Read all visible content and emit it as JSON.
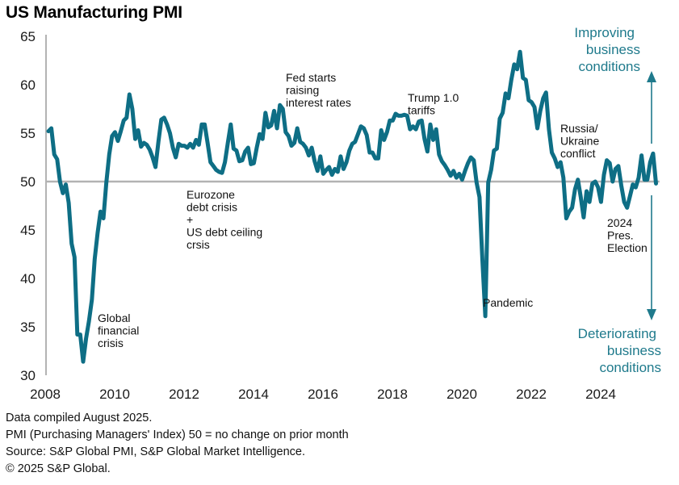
{
  "chart_data": {
    "type": "line",
    "title": "US Manufacturing PMI",
    "xlabel": "",
    "ylabel": "",
    "ylim": [
      30,
      65
    ],
    "yticks": [
      30,
      35,
      40,
      45,
      50,
      55,
      60,
      65
    ],
    "xlim": [
      2008,
      2025.6
    ],
    "xticks": [
      "2008",
      "2010",
      "2012",
      "2014",
      "2016",
      "2018",
      "2020",
      "2022",
      "2024"
    ],
    "reference_line": 50,
    "grid": false,
    "legend": "none",
    "line_color": "#0e6e85",
    "start": "2008-01",
    "frequency": "monthly",
    "series": [
      {
        "name": "US Manufacturing PMI",
        "values": [
          55.2,
          55.5,
          52.8,
          52.3,
          50.0,
          48.8,
          49.7,
          47.8,
          43.6,
          42.2,
          34.2,
          34.2,
          31.4,
          33.8,
          35.6,
          37.8,
          42.0,
          44.7,
          46.9,
          46.2,
          49.9,
          52.8,
          54.7,
          55.1,
          54.2,
          55.2,
          56.3,
          56.6,
          59.0,
          57.5,
          54.4,
          55.3,
          53.6,
          54.0,
          53.8,
          53.3,
          52.5,
          51.5,
          54.1,
          56.4,
          56.6,
          55.9,
          55.0,
          53.5,
          52.5,
          53.9,
          53.7,
          53.7,
          53.5,
          53.9,
          53.5,
          54.3,
          53.8,
          55.9,
          55.9,
          54.0,
          52.0,
          51.6,
          51.2,
          51.0,
          50.9,
          52.0,
          54.0,
          55.9,
          53.4,
          53.2,
          52.1,
          52.2,
          53.1,
          53.5,
          51.8,
          51.9,
          53.5,
          54.9,
          54.4,
          57.1,
          55.6,
          55.8,
          57.3,
          55.5,
          57.9,
          57.5,
          55.1,
          54.7,
          53.7,
          54.0,
          55.5,
          54.1,
          53.9,
          53.5,
          52.7,
          53.5,
          52.1,
          51.1,
          52.6,
          50.8,
          51.2,
          51.5,
          50.7,
          51.3,
          51.0,
          52.6,
          51.3,
          52.0,
          53.2,
          53.9,
          54.1,
          54.9,
          55.7,
          55.5,
          54.8,
          53.0,
          53.0,
          52.4,
          52.4,
          55.3,
          54.3,
          55.1,
          56.3,
          56.3,
          57.0,
          56.8,
          56.8,
          56.9,
          56.8,
          55.4,
          55.7,
          55.4,
          56.2,
          56.3,
          54.4,
          53.1,
          55.9,
          54.3,
          55.4,
          52.8,
          52.1,
          51.7,
          51.2,
          50.6,
          51.1,
          50.4,
          50.8,
          50.2,
          51.1,
          51.9,
          52.5,
          52.2,
          49.9,
          48.4,
          41.9,
          36.1,
          49.9,
          51.2,
          53.2,
          53.4,
          56.5,
          57.1,
          59.1,
          58.6,
          60.5,
          62.1,
          61.6,
          63.4,
          60.7,
          60.5,
          58.4,
          58.2,
          57.7,
          55.5,
          57.3,
          58.6,
          59.2,
          55.4,
          53.0,
          52.4,
          51.5,
          52.0,
          50.4,
          46.2,
          46.9,
          47.3,
          49.2,
          50.2,
          48.4,
          46.3,
          49.0,
          47.9,
          49.8,
          50.0,
          49.4,
          47.9,
          50.7,
          52.2,
          51.9,
          50.0,
          51.3,
          51.6,
          49.6,
          47.9,
          47.3,
          48.5,
          49.7,
          49.4,
          50.4,
          52.7,
          50.2,
          50.2,
          52.0,
          52.9,
          49.8
        ]
      }
    ],
    "annotations": [
      {
        "lines": [
          "Global",
          "financial",
          "crisis"
        ]
      },
      {
        "lines": [
          "Eurozone",
          "debt crisis",
          "+",
          "US debt ceiling",
          "crsis"
        ]
      },
      {
        "lines": [
          "Fed starts",
          "raising",
          "interest rates"
        ]
      },
      {
        "lines": [
          "Trump 1.0",
          "tariffs"
        ]
      },
      {
        "lines": [
          "Pandemic"
        ]
      },
      {
        "lines": [
          "Russia/",
          "Ukraine",
          "conflict"
        ]
      },
      {
        "lines": [
          "2024",
          "Pres.",
          "Election"
        ]
      }
    ],
    "direction_labels": {
      "up": [
        "Improving",
        "business",
        "conditions"
      ],
      "down": [
        "Deteriorating",
        "business",
        "conditions"
      ]
    }
  },
  "footer": {
    "line1": "Data compiled August 2025.",
    "line2": "PMI (Purchasing Managers' Index) 50 = no change on prior month",
    "line3": "Source: S&P Global PMI, S&P Global Market Intelligence.",
    "line4": "© 2025 S&P Global."
  }
}
